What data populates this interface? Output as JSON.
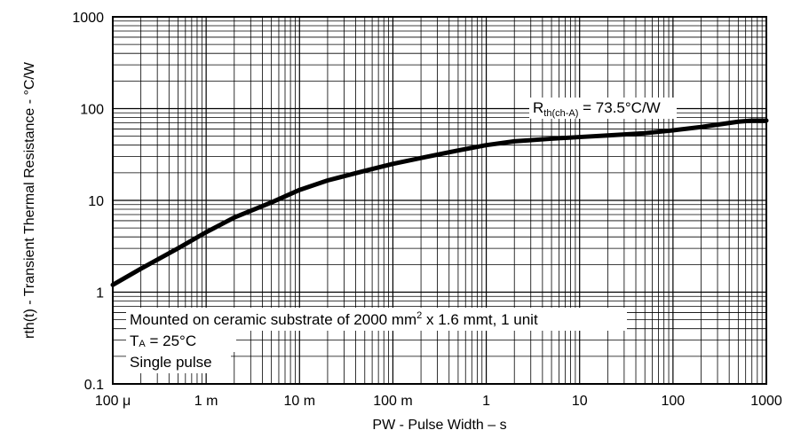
{
  "chart_data": {
    "type": "line",
    "x_scale": "log",
    "y_scale": "log",
    "xlim": [
      0.0001,
      1000
    ],
    "ylim": [
      0.1,
      1000
    ],
    "grid": true,
    "xlabel": "PW - Pulse Width – s",
    "ylabel": "rth(t) - Transient Thermal Resistance - °C/W",
    "x_ticks": [
      0.0001,
      0.001,
      0.01,
      0.1,
      1,
      10,
      100,
      1000
    ],
    "x_tick_labels": [
      "100 μ",
      "1 m",
      "10 m",
      "100 m",
      "1",
      "10",
      "100",
      "1000"
    ],
    "y_ticks": [
      0.1,
      1,
      10,
      100,
      1000
    ],
    "y_tick_labels": [
      "0.1",
      "1",
      "10",
      "100",
      "1000"
    ],
    "series": [
      {
        "x": [
          0.0001,
          0.0002,
          0.0005,
          0.001,
          0.002,
          0.005,
          0.01,
          0.02,
          0.05,
          0.1,
          0.2,
          0.5,
          1,
          2,
          5,
          10,
          20,
          50,
          100,
          200,
          500,
          700,
          1000
        ],
        "y": [
          1.2,
          1.8,
          3.0,
          4.5,
          6.5,
          9.5,
          13,
          16.5,
          21,
          25,
          29,
          35,
          40,
          44,
          47,
          49,
          51,
          54,
          58,
          63,
          72,
          74,
          74
        ]
      }
    ],
    "annotations": {
      "rth_label": "R",
      "rth_sub": "th(ch-A)",
      "rth_value": " = 73.5°C/W",
      "mount_pre": "Mounted on ceramic substrate of 2000 mm",
      "mount_sup": "2",
      "mount_post": " x 1.6 mmt, 1 unit",
      "ta_label": "T",
      "ta_sub": "A",
      "ta_value": " = 25°C",
      "pulse": "Single pulse"
    }
  }
}
